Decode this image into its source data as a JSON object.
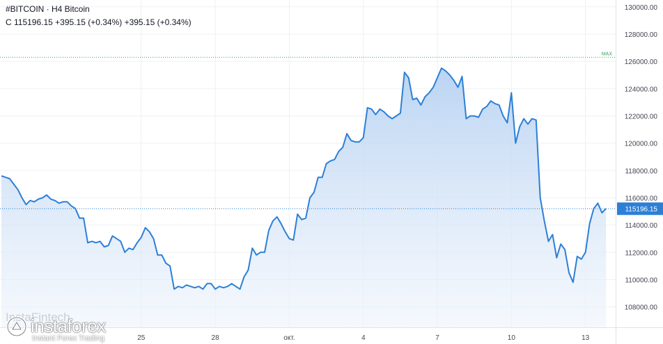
{
  "header": {
    "symbol_line": "#BITCOIN · H4 Bitcoin",
    "price_line": "C 115196.15 +395.15 (+0.34%) +395.15 (+0.34%)"
  },
  "logo": {
    "brand": "instaforex",
    "tagline": "Instant Forex Trading",
    "ghost_text": "InstaFintech"
  },
  "colors": {
    "line": "#2c7fd6",
    "fill_top": "#b7d2f2",
    "fill_bottom": "#eef4fc",
    "grid": "#eef0f3",
    "max_line": "#3aa05a",
    "price_line": "#2c7fd6",
    "axis_text": "#434651"
  },
  "chart_data": {
    "type": "area",
    "title": "#BITCOIN · H4 Bitcoin",
    "ylim": [
      106500,
      130500
    ],
    "yticks": [
      108000,
      110000,
      112000,
      114000,
      116000,
      118000,
      120000,
      122000,
      124000,
      126000,
      128000,
      130000
    ],
    "ytick_labels": [
      "108000.00",
      "110000.00",
      "112000.00",
      "114000.00",
      "116000.00",
      "118000.00",
      "120000.00",
      "122000.00",
      "124000.00",
      "126000.00",
      "128000.00",
      "130000.00"
    ],
    "x_range": [
      0,
      149
    ],
    "xticks": [
      {
        "index": 34,
        "label": "25"
      },
      {
        "index": 52,
        "label": "28"
      },
      {
        "index": 70,
        "label": "окт."
      },
      {
        "index": 88,
        "label": "4"
      },
      {
        "index": 106,
        "label": "7"
      },
      {
        "index": 124,
        "label": "10"
      },
      {
        "index": 142,
        "label": "13"
      }
    ],
    "current_price": 115196.15,
    "current_price_label": "115196.15",
    "max_level": 126300,
    "max_label": "MAX",
    "grid": true,
    "values": [
      117600,
      117500,
      117400,
      117000,
      116600,
      116000,
      115500,
      115800,
      115700,
      115900,
      116000,
      116200,
      115900,
      115800,
      115600,
      115700,
      115700,
      115400,
      115200,
      114500,
      114500,
      112700,
      112800,
      112700,
      112800,
      112400,
      112500,
      113200,
      113000,
      112800,
      112000,
      112300,
      112200,
      112700,
      113100,
      113800,
      113500,
      113000,
      111800,
      111800,
      111200,
      111000,
      109300,
      109500,
      109400,
      109600,
      109500,
      109400,
      109500,
      109300,
      109700,
      109700,
      109300,
      109500,
      109400,
      109500,
      109700,
      109500,
      109300,
      110200,
      110700,
      112300,
      111800,
      112000,
      112000,
      113600,
      114300,
      114600,
      114100,
      113500,
      113000,
      112900,
      114800,
      114400,
      114500,
      116000,
      116400,
      117500,
      117500,
      118500,
      118700,
      118800,
      119400,
      119700,
      120700,
      120200,
      120100,
      120100,
      120400,
      122600,
      122500,
      122100,
      122500,
      122300,
      122000,
      121800,
      122000,
      122200,
      125200,
      124800,
      123200,
      123300,
      122800,
      123400,
      123700,
      124100,
      124800,
      125500,
      125300,
      125000,
      124600,
      124100,
      124900,
      121800,
      122000,
      122000,
      121900,
      122500,
      122700,
      123100,
      122900,
      122800,
      122000,
      121500,
      123700,
      120000,
      121200,
      121800,
      121400,
      121800,
      121700,
      116000,
      114300,
      112800,
      113300,
      111600,
      112600,
      112200,
      110500,
      109800,
      111700,
      111500,
      112000,
      114100,
      115200,
      115600,
      114900,
      115200
    ]
  }
}
